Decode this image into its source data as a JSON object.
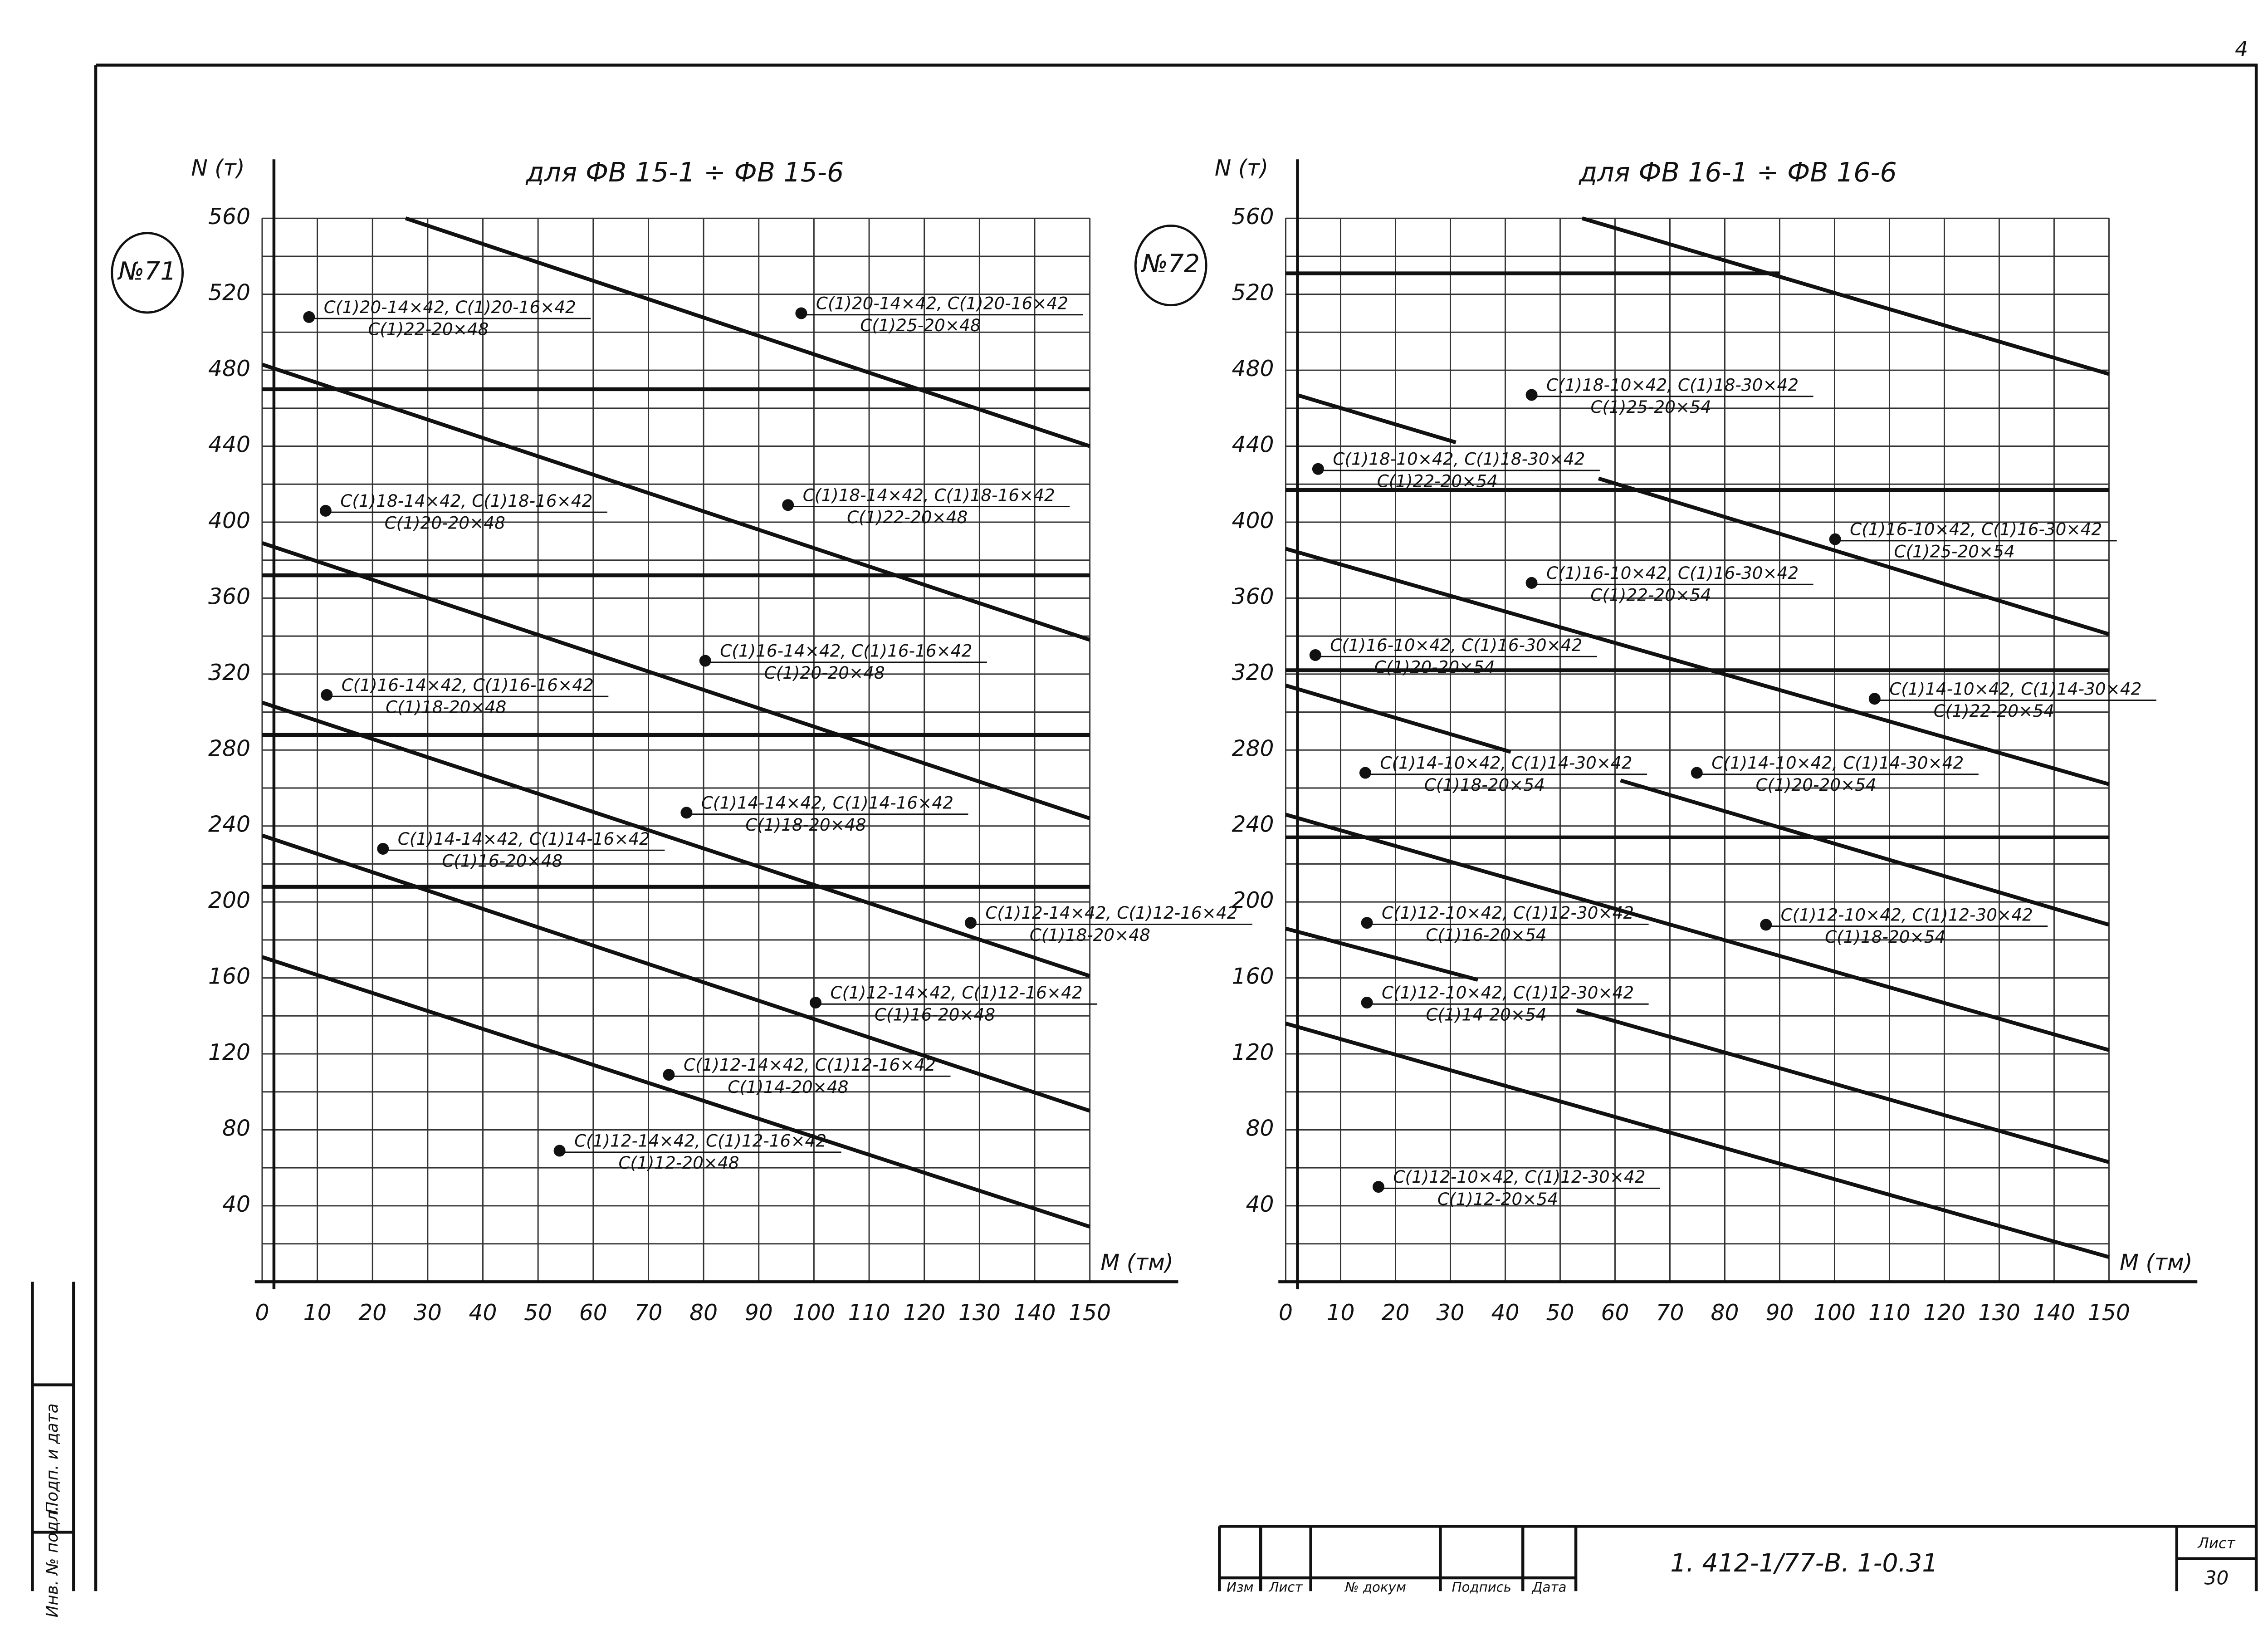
{
  "sheet_number": "4",
  "chart_data": [
    {
      "type": "line",
      "badge": "№71",
      "title": "для ФВ 15-1 ÷ ФВ 15-6",
      "ylabel": "N (т)",
      "xlabel": "M (тм)",
      "xlim": [
        0,
        150
      ],
      "ylim": [
        0,
        560
      ],
      "xticks": [
        0,
        10,
        20,
        30,
        40,
        50,
        60,
        70,
        80,
        90,
        100,
        110,
        120,
        130,
        140,
        150
      ],
      "yticks": [
        40,
        80,
        120,
        160,
        200,
        240,
        280,
        320,
        360,
        400,
        440,
        480,
        520,
        560
      ],
      "y_minor_ticks": [
        20,
        60,
        100,
        140,
        180,
        220,
        260,
        300,
        340,
        380,
        420,
        460,
        500,
        540
      ],
      "grid": true,
      "color": "#111111",
      "series": [
        {
          "x": [
            26,
            150
          ],
          "values": [
            560,
            440
          ]
        },
        {
          "x": [
            0,
            150
          ],
          "values": [
            470,
            470
          ]
        },
        {
          "x": [
            0,
            150
          ],
          "values": [
            483,
            338
          ]
        },
        {
          "x": [
            0,
            150
          ],
          "values": [
            372,
            372
          ]
        },
        {
          "x": [
            0,
            150
          ],
          "values": [
            389,
            244
          ]
        },
        {
          "x": [
            0,
            150
          ],
          "values": [
            288,
            288
          ]
        },
        {
          "x": [
            0,
            150
          ],
          "values": [
            305,
            161
          ]
        },
        {
          "x": [
            0,
            150
          ],
          "values": [
            208,
            208
          ]
        },
        {
          "x": [
            0,
            150
          ],
          "values": [
            235,
            90
          ]
        },
        {
          "x": [
            0,
            150
          ],
          "values": [
            171,
            29
          ]
        }
      ],
      "annotations": [
        {
          "x": 8.5,
          "y": 508,
          "text": [
            "C(1)20-14×42, C(1)20-16×42",
            "C(1)22-20×48"
          ]
        },
        {
          "x": 97.7,
          "y": 510,
          "text": [
            "C(1)20-14×42, C(1)20-16×42",
            "C(1)25-20×48"
          ]
        },
        {
          "x": 11.5,
          "y": 406,
          "text": [
            "C(1)18-14×42, C(1)18-16×42",
            "C(1)20-20×48"
          ]
        },
        {
          "x": 95.3,
          "y": 409,
          "text": [
            "C(1)18-14×42, C(1)18-16×42",
            "C(1)22-20×48"
          ]
        },
        {
          "x": 80.3,
          "y": 327,
          "text": [
            "C(1)16-14×42, C(1)16-16×42",
            "C(1)20-20×48"
          ]
        },
        {
          "x": 11.7,
          "y": 309,
          "text": [
            "C(1)16-14×42, C(1)16-16×42",
            "C(1)18-20×48"
          ]
        },
        {
          "x": 76.9,
          "y": 247,
          "text": [
            "C(1)14-14×42, C(1)14-16×42",
            "C(1)18-20×48"
          ]
        },
        {
          "x": 21.9,
          "y": 228,
          "text": [
            "C(1)14-14×42, C(1)14-16×42",
            "C(1)16-20×48"
          ]
        },
        {
          "x": 128.4,
          "y": 189,
          "text": [
            "C(1)12-14×42, C(1)12-16×42",
            "C(1)18-20×48"
          ]
        },
        {
          "x": 100.3,
          "y": 147,
          "text": [
            "C(1)12-14×42, C(1)12-16×42",
            "C(1)16-20×48"
          ]
        },
        {
          "x": 73.7,
          "y": 109,
          "text": [
            "C(1)12-14×42, C(1)12-16×42",
            "C(1)14-20×48"
          ]
        },
        {
          "x": 53.9,
          "y": 69,
          "text": [
            "C(1)12-14×42, C(1)12-16×42",
            "C(1)12-20×48"
          ]
        }
      ]
    },
    {
      "type": "line",
      "badge": "№72",
      "title": "для ФВ 16-1 ÷ ФВ 16-6",
      "ylabel": "N (т)",
      "xlabel": "M (тм)",
      "xlim": [
        0,
        150
      ],
      "ylim": [
        0,
        560
      ],
      "xticks": [
        0,
        10,
        20,
        30,
        40,
        50,
        60,
        70,
        80,
        90,
        100,
        110,
        120,
        130,
        140,
        150
      ],
      "yticks": [
        40,
        80,
        120,
        160,
        200,
        240,
        280,
        320,
        360,
        400,
        440,
        480,
        520,
        560
      ],
      "y_minor_ticks": [
        20,
        60,
        100,
        140,
        180,
        220,
        260,
        300,
        340,
        380,
        420,
        460,
        500,
        540
      ],
      "grid": true,
      "color": "#111111",
      "series": [
        {
          "x": [
            54,
            150
          ],
          "values": [
            560,
            478
          ]
        },
        {
          "x": [
            0,
            90
          ],
          "values": [
            531,
            531
          ]
        },
        {
          "x": [
            2,
            31
          ],
          "values": [
            467,
            442
          ]
        },
        {
          "x": [
            0,
            150
          ],
          "values": [
            417,
            417
          ]
        },
        {
          "x": [
            57,
            150
          ],
          "values": [
            423,
            341
          ]
        },
        {
          "x": [
            0,
            150
          ],
          "values": [
            386,
            262
          ]
        },
        {
          "x": [
            0,
            150
          ],
          "values": [
            322,
            322
          ]
        },
        {
          "x": [
            0,
            41
          ],
          "values": [
            314,
            279
          ]
        },
        {
          "x": [
            61,
            150
          ],
          "values": [
            264,
            188
          ]
        },
        {
          "x": [
            0,
            150
          ],
          "values": [
            234,
            234
          ]
        },
        {
          "x": [
            0,
            150
          ],
          "values": [
            246,
            122
          ]
        },
        {
          "x": [
            0,
            35
          ],
          "values": [
            186,
            159
          ]
        },
        {
          "x": [
            53,
            150
          ],
          "values": [
            143,
            63
          ]
        },
        {
          "x": [
            0,
            150
          ],
          "values": [
            136,
            13
          ]
        }
      ],
      "annotations": [
        {
          "x": 44.8,
          "y": 467,
          "text": [
            "C(1)18-10×42, C(1)18-30×42",
            "C(1)25-20×54"
          ]
        },
        {
          "x": 5.9,
          "y": 428,
          "text": [
            "C(1)18-10×42, C(1)18-30×42",
            "C(1)22-20×54"
          ]
        },
        {
          "x": 100.1,
          "y": 391,
          "text": [
            "C(1)16-10×42, C(1)16-30×42",
            "C(1)25-20×54"
          ]
        },
        {
          "x": 44.8,
          "y": 368,
          "text": [
            "C(1)16-10×42, C(1)16-30×42",
            "C(1)22-20×54"
          ]
        },
        {
          "x": 5.4,
          "y": 330,
          "text": [
            "C(1)16-10×42, C(1)16-30×42",
            "C(1)20-20×54"
          ]
        },
        {
          "x": 107.3,
          "y": 307,
          "text": [
            "C(1)14-10×42, C(1)14-30×42",
            "C(1)22-20×54"
          ]
        },
        {
          "x": 14.5,
          "y": 268,
          "text": [
            "C(1)14-10×42, C(1)14-30×42",
            "C(1)18-20×54"
          ]
        },
        {
          "x": 74.9,
          "y": 268,
          "text": [
            "C(1)14-10×42, C(1)14-30×42",
            "C(1)20-20×54"
          ]
        },
        {
          "x": 14.8,
          "y": 189,
          "text": [
            "C(1)12-10×42, C(1)12-30×42",
            "C(1)16-20×54"
          ]
        },
        {
          "x": 87.5,
          "y": 188,
          "text": [
            "C(1)12-10×42, C(1)12-30×42",
            "C(1)18-20×54"
          ]
        },
        {
          "x": 14.8,
          "y": 147,
          "text": [
            "C(1)12-10×42, C(1)12-30×42",
            "C(1)14-20×54"
          ]
        },
        {
          "x": 16.9,
          "y": 50,
          "text": [
            "C(1)12-10×42, C(1)12-30×42",
            "C(1)12-20×54"
          ]
        }
      ]
    }
  ],
  "side_stamp": [
    "Инв. № подл.",
    "Подп. и дата"
  ],
  "title_block": {
    "columns": [
      "Изм",
      "Лист",
      "№ докум",
      "Подпись",
      "Дата"
    ],
    "code": "1. 412-1/77-В. 1-0.31",
    "sheet_label": "Лист",
    "sheet": 30
  }
}
